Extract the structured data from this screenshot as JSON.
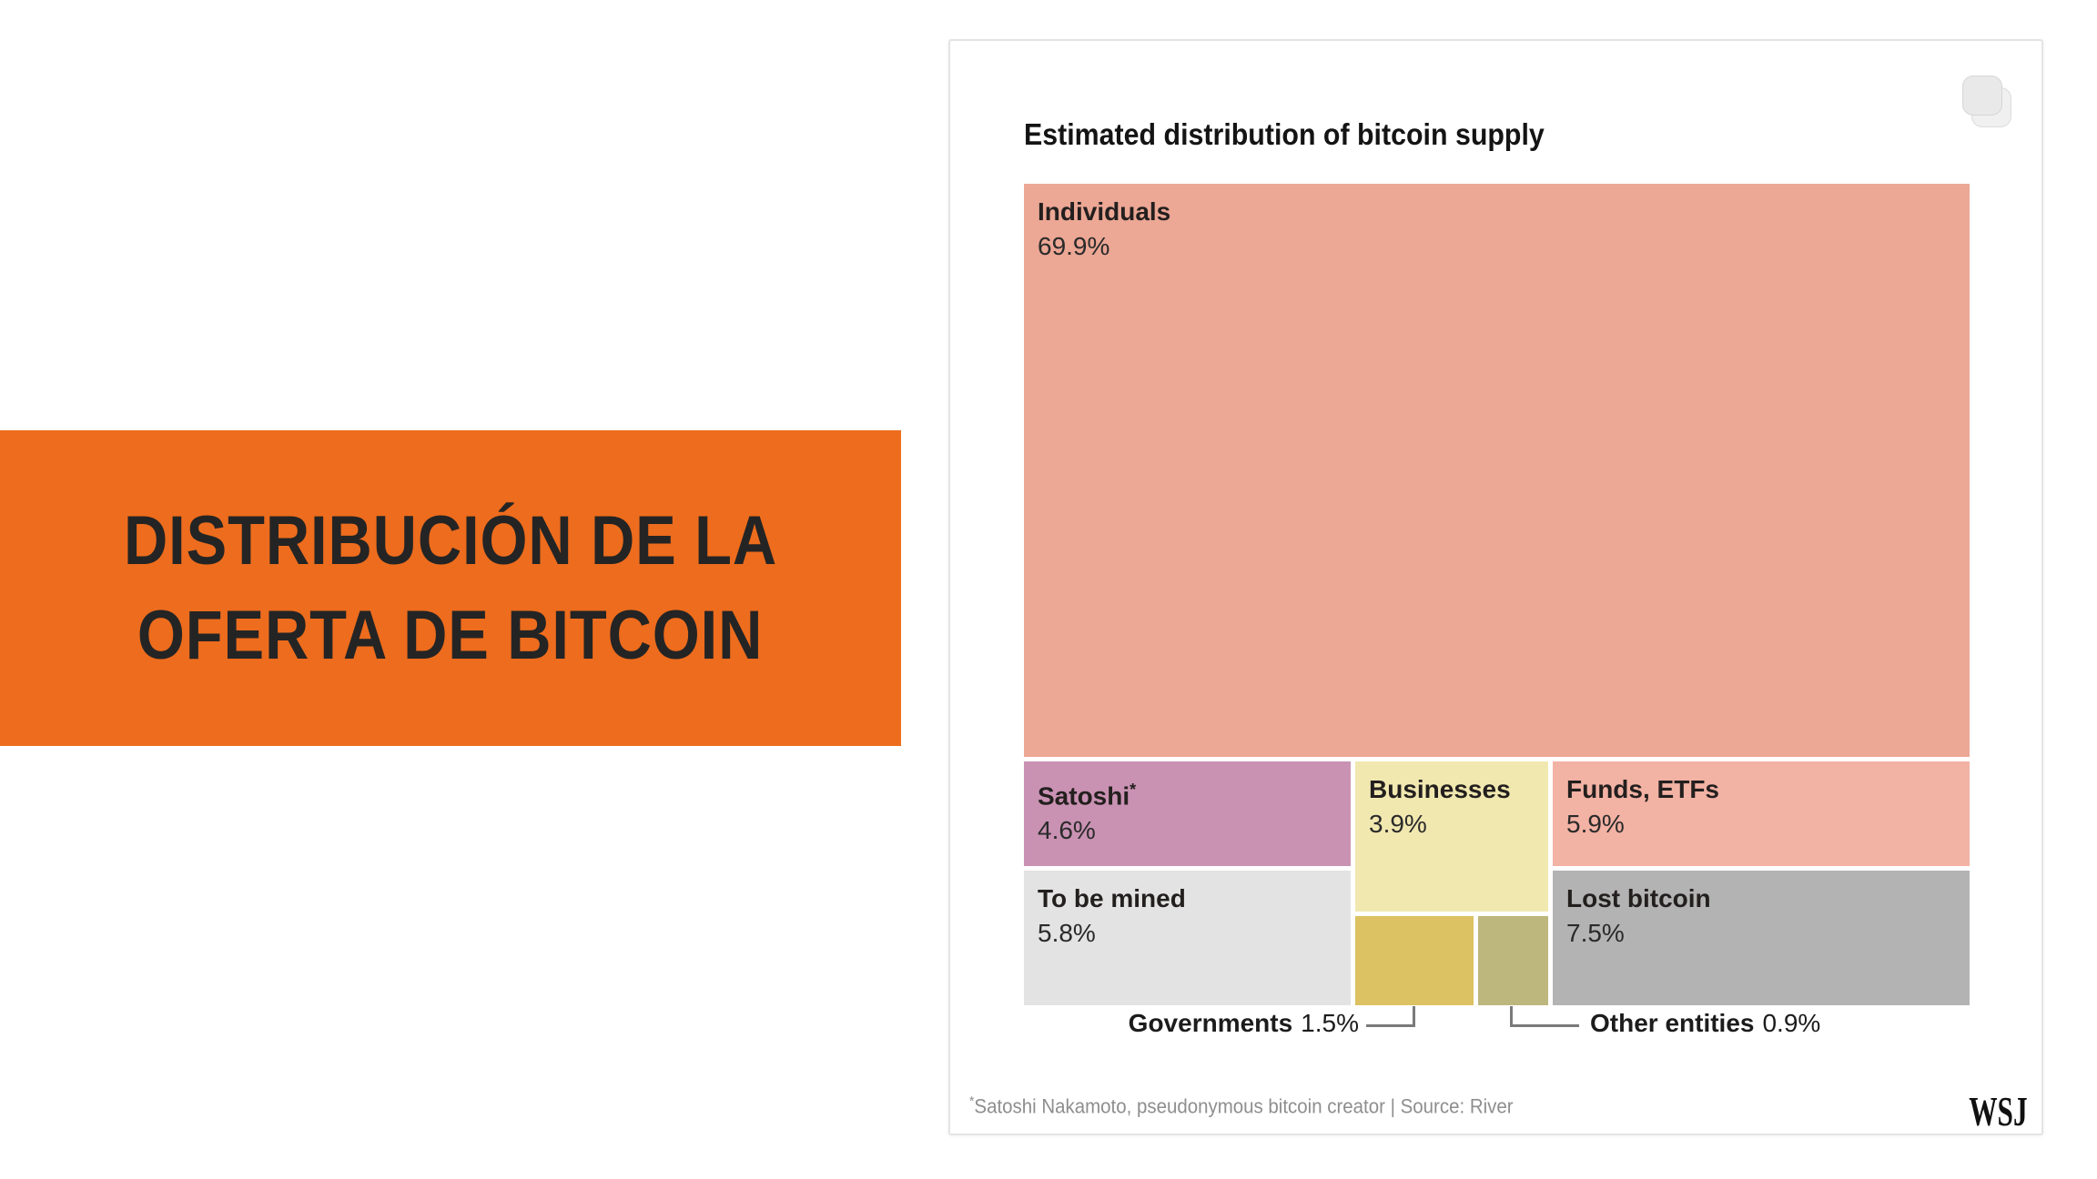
{
  "banner": {
    "line1": "DISTRIBUCIÓN DE LA",
    "line2": "OFERTA DE BITCOIN",
    "bg_color": "#ed6c1d",
    "text_color": "#242424"
  },
  "card": {
    "title": "Estimated distribution of bitcoin supply",
    "footnote_mark": "*",
    "footnote_text": "Satoshi Nakamoto, pseudonymous bitcoin creator | Source: River",
    "logo_text": "WSJ",
    "icons": {
      "copy": "copy-icon"
    }
  },
  "chart_data": {
    "type": "treemap",
    "title": "Estimated distribution of bitcoin supply",
    "unit": "% of bitcoin supply",
    "source": "River",
    "footnote": "*Satoshi Nakamoto, pseudonymous bitcoin creator",
    "layout_hint": "Individuals fills top band; bottom band has three columns: (Satoshi / To be mined), (Businesses / Governments+Other entities), (Funds ETFs / Lost bitcoin); Governments and Other entities labeled via callout lines below the map",
    "items": [
      {
        "label": "Individuals",
        "value": 69.9,
        "pct": "69.9%",
        "color": "#eca795",
        "label_inside": true
      },
      {
        "label": "Satoshi",
        "sup": "*",
        "value": 4.6,
        "pct": "4.6%",
        "color": "#c992b3",
        "label_inside": true
      },
      {
        "label": "To be mined",
        "value": 5.8,
        "pct": "5.8%",
        "color": "#e3e3e3",
        "label_inside": true
      },
      {
        "label": "Businesses",
        "value": 3.9,
        "pct": "3.9%",
        "color": "#f1e8b0",
        "label_inside": true
      },
      {
        "label": "Governments",
        "value": 1.5,
        "pct": "1.5%",
        "color": "#dcc262",
        "label_inside": false
      },
      {
        "label": "Other entities",
        "value": 0.9,
        "pct": "0.9%",
        "color": "#bdb77d",
        "label_inside": false
      },
      {
        "label": "Funds, ETFs",
        "value": 5.9,
        "pct": "5.9%",
        "color": "#f2b2a4",
        "label_inside": true
      },
      {
        "label": "Lost bitcoin",
        "value": 7.5,
        "pct": "7.5%",
        "color": "#b3b3b3",
        "label_inside": true
      }
    ],
    "callouts": [
      {
        "label": "Governments",
        "pct": "1.5%"
      },
      {
        "label": "Other entities",
        "pct": "0.9%"
      }
    ]
  }
}
